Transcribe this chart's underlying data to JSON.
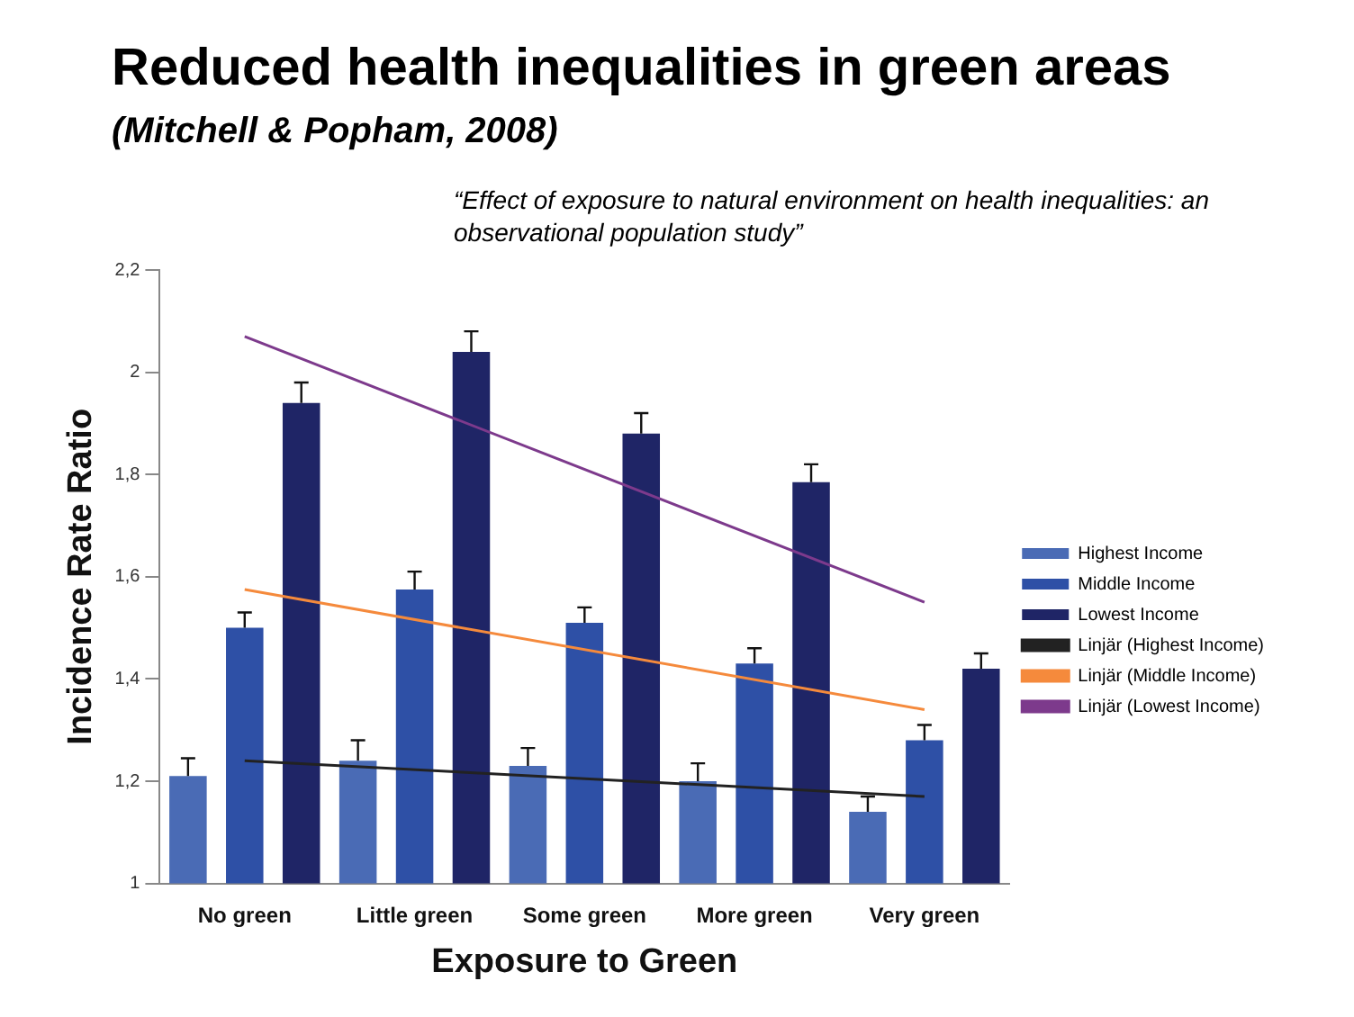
{
  "chart_data": {
    "type": "bar",
    "title": "Reduced health inequalities in green areas",
    "subtitle": "(Mitchell & Popham, 2008)",
    "annotations": [
      "“Effect of exposure to natural environment on health inequalities: an observational population study”"
    ],
    "xlabel": "Exposure to Green",
    "ylabel": "Incidence Rate Ratio",
    "categories": [
      "No green",
      "Little green",
      "Some green",
      "More green",
      "Very green"
    ],
    "series": [
      {
        "name": "Highest Income",
        "color": "#4a6bb5",
        "values": [
          1.21,
          1.24,
          1.23,
          1.2,
          1.14
        ],
        "errors": [
          [
            1.21,
            1.245
          ],
          [
            1.24,
            1.28
          ],
          [
            1.23,
            1.265
          ],
          [
            1.2,
            1.235
          ],
          [
            1.14,
            1.17
          ]
        ]
      },
      {
        "name": "Middle Income",
        "color": "#2e50a6",
        "values": [
          1.5,
          1.575,
          1.51,
          1.43,
          1.28
        ],
        "errors": [
          [
            1.5,
            1.53
          ],
          [
            1.575,
            1.61
          ],
          [
            1.51,
            1.54
          ],
          [
            1.43,
            1.46
          ],
          [
            1.28,
            1.31
          ]
        ]
      },
      {
        "name": "Lowest Income",
        "color": "#1f2566",
        "values": [
          1.94,
          2.04,
          1.88,
          1.785,
          1.42
        ],
        "errors": [
          [
            1.94,
            1.98
          ],
          [
            2.04,
            2.08
          ],
          [
            1.88,
            1.92
          ],
          [
            1.785,
            1.82
          ],
          [
            1.42,
            1.45
          ]
        ]
      },
      {
        "name": "Linjär (Highest Income)",
        "type": "line",
        "color": "#222222",
        "x": [
          "No green",
          "Very green"
        ],
        "values": [
          1.24,
          1.17
        ]
      },
      {
        "name": "Linjär (Middle Income)",
        "type": "line",
        "color": "#f58a3c",
        "x": [
          "No green",
          "Very green"
        ],
        "values": [
          1.575,
          1.34
        ]
      },
      {
        "name": "Linjär (Lowest Income)",
        "type": "line",
        "color": "#7d3a8c",
        "x": [
          "No green",
          "Very green"
        ],
        "values": [
          2.07,
          1.55
        ]
      }
    ],
    "ylim": [
      1,
      2.2
    ],
    "yticks": [
      1,
      {
        "value": 1.2,
        "label": "1,2"
      },
      {
        "value": 1.4,
        "label": "1,4"
      },
      {
        "value": 1.6,
        "label": "1,6"
      },
      {
        "value": 1.8,
        "label": "1,8"
      },
      2,
      {
        "value": 2.2,
        "label": "2,2"
      }
    ],
    "grid": false,
    "legend": "right",
    "marker": "none"
  }
}
